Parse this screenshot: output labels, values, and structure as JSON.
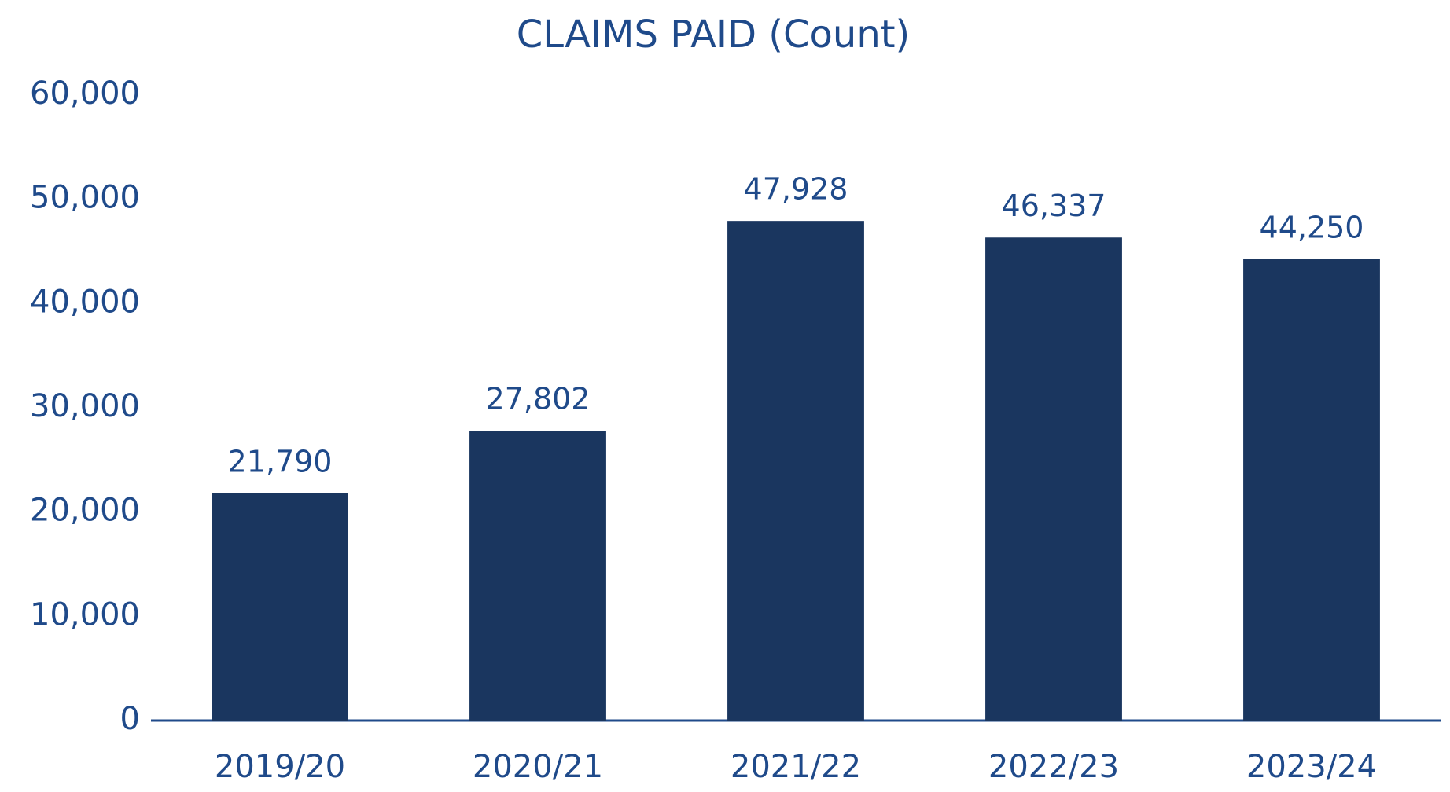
{
  "chart_data": {
    "type": "bar",
    "title": "CLAIMS PAID (Count)",
    "categories": [
      "2019/20",
      "2020/21",
      "2021/22",
      "2022/23",
      "2023/24"
    ],
    "values": [
      21790,
      27802,
      47928,
      46337,
      44250
    ],
    "value_labels": [
      "21,790",
      "27,802",
      "47,928",
      "46,337",
      "44,250"
    ],
    "color": "#1a365f",
    "ylim": [
      0,
      60000
    ],
    "yticks": [
      0,
      {
        "value": 10000,
        "label": "10,000"
      },
      {
        "value": 20000,
        "label": "20,000"
      },
      {
        "value": 30000,
        "label": "30,000"
      },
      {
        "value": 40000,
        "label": "40,000"
      },
      {
        "value": 50000,
        "label": "50,000"
      },
      {
        "value": 60000,
        "label": "60,000"
      }
    ],
    "grid": false
  }
}
